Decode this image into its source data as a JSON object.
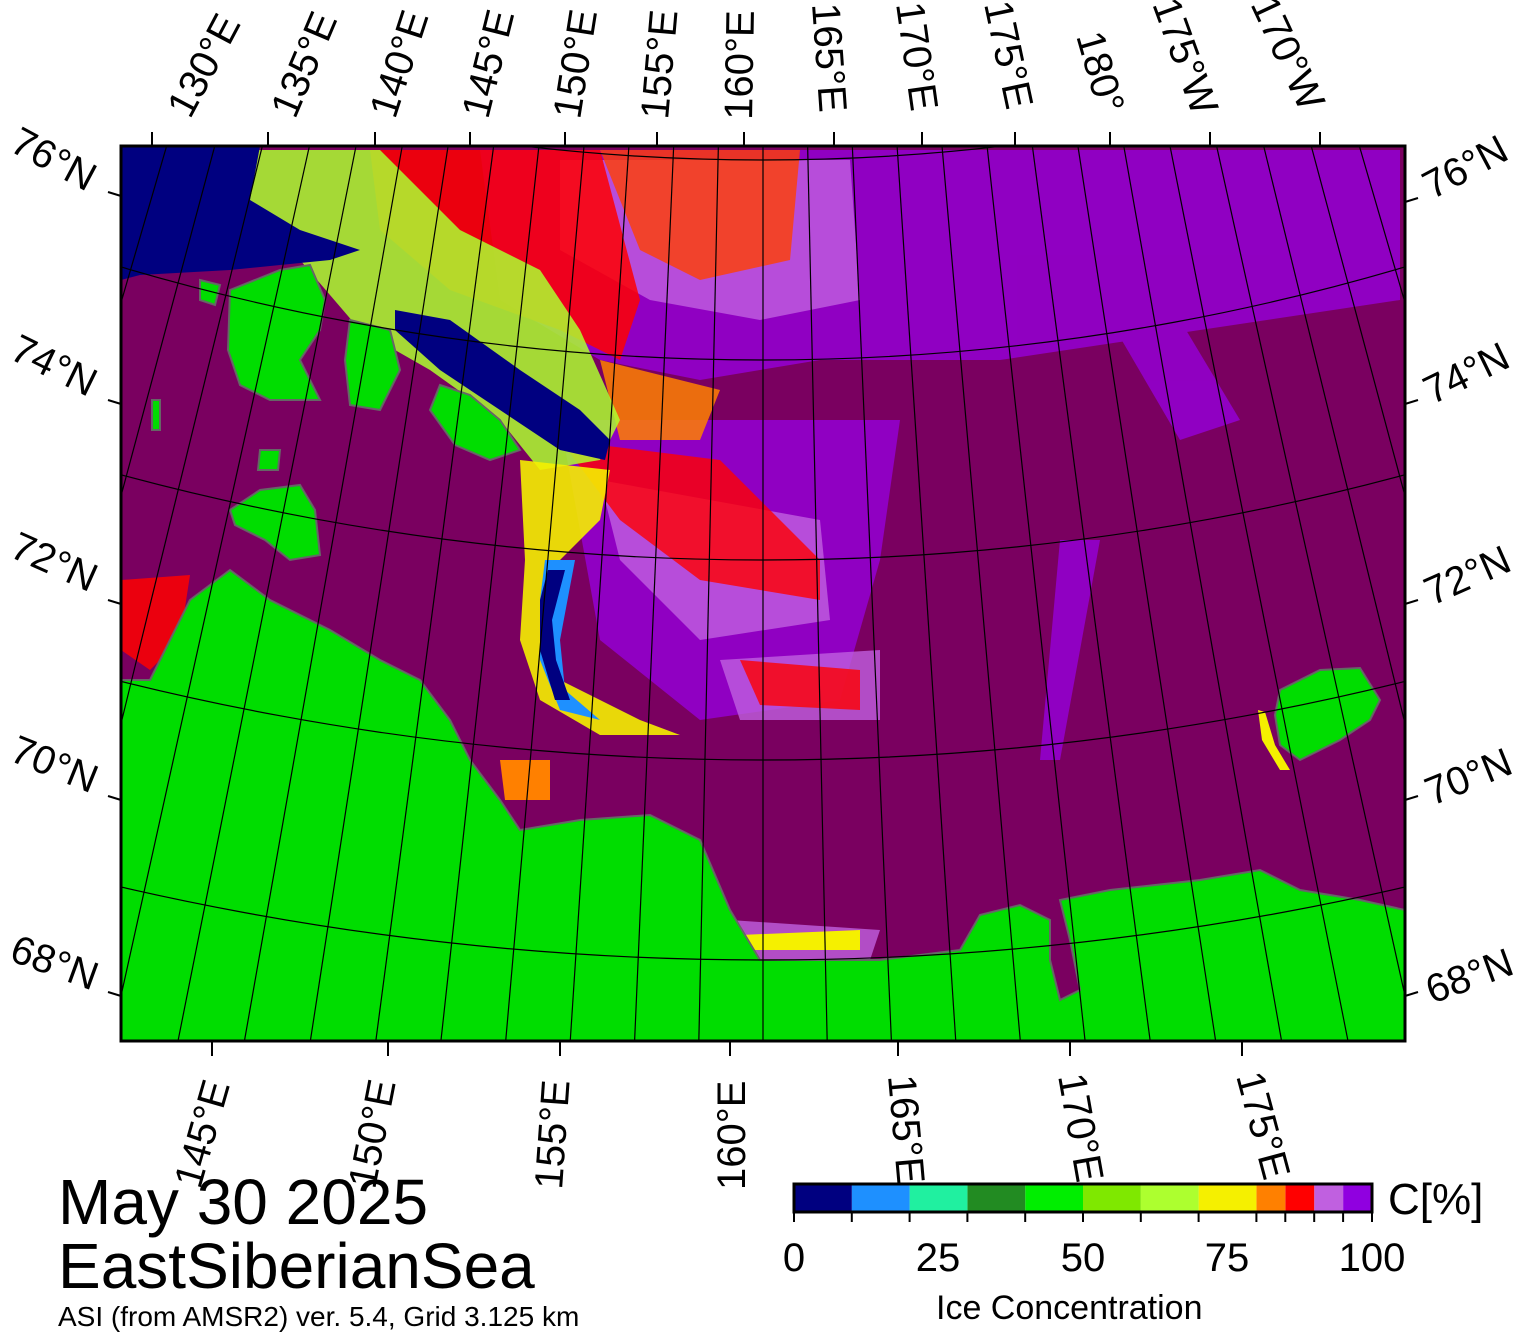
{
  "map": {
    "date": "May 30 2025",
    "region": "EastSiberianSea",
    "source": "ASI (from AMSR2) ver. 5.4,  Grid 3.125 km",
    "top_lon_labels": [
      "130°E",
      "135°E",
      "140°E",
      "145°E",
      "150°E",
      "155°E",
      "160°E",
      "165°E",
      "170°E",
      "175°E",
      "180°",
      "175°W",
      "170°W"
    ],
    "bottom_lon_labels": [
      "145°E",
      "150°E",
      "155°E",
      "160°E",
      "165°E",
      "170°E",
      "175°E"
    ],
    "lat_labels": [
      "76°N",
      "74°N",
      "72°N",
      "70°N",
      "68°N"
    ],
    "colors": {
      "land": "#00dd00",
      "open_water": "#000080",
      "full_ice": "#7a0060",
      "coast_mask": "#888888"
    }
  },
  "colorbar": {
    "title": "Ice Concentration",
    "unit": "C[%]",
    "tick_labels": [
      "0",
      "25",
      "50",
      "75",
      "100"
    ],
    "colors": [
      "#000080",
      "#1e90ff",
      "#20f0a0",
      "#228b22",
      "#00ee00",
      "#7fe800",
      "#adff2f",
      "#f5f000",
      "#ff8000",
      "#ff0000",
      "#c060e0",
      "#9000e0",
      "#7a0060"
    ]
  }
}
